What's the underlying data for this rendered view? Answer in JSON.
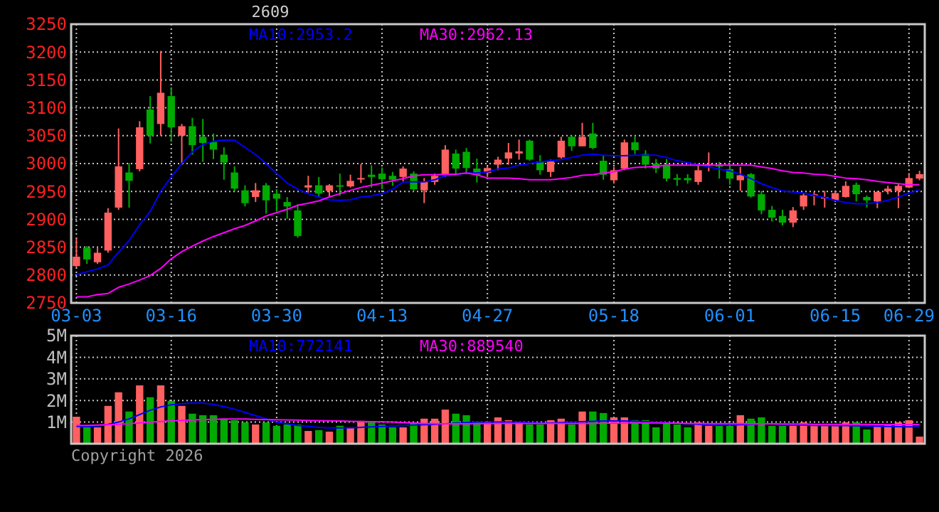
{
  "chart_data": [
    {
      "type": "candlestick",
      "title": "2609",
      "legend": "top",
      "grid": true,
      "categories": [
        "03-03",
        null,
        null,
        null,
        null,
        null,
        null,
        null,
        null,
        "03-16",
        null,
        null,
        null,
        null,
        null,
        null,
        null,
        null,
        null,
        "03-30",
        null,
        null,
        null,
        null,
        null,
        null,
        null,
        null,
        null,
        "04-13",
        null,
        null,
        null,
        null,
        null,
        null,
        null,
        null,
        null,
        "04-27",
        null,
        null,
        null,
        null,
        null,
        null,
        null,
        null,
        null,
        null,
        null,
        "05-18",
        null,
        null,
        null,
        null,
        null,
        null,
        null,
        null,
        null,
        null,
        "06-01",
        null,
        null,
        null,
        null,
        null,
        null,
        null,
        null,
        null,
        "06-15",
        null,
        null,
        null,
        null,
        null,
        null,
        "06-29",
        null
      ],
      "ylim": [
        2750,
        3250
      ],
      "yticks": [
        2750,
        2800,
        2850,
        2900,
        2950,
        3000,
        3050,
        3100,
        3150,
        3200,
        3250
      ],
      "ohlc": [
        [
          2816,
          2867,
          2814,
          2833
        ],
        [
          2849,
          2852,
          2820,
          2828
        ],
        [
          2823,
          2849,
          2820,
          2840
        ],
        [
          2844,
          2920,
          2840,
          2912
        ],
        [
          2921,
          3063,
          2917,
          2995
        ],
        [
          2984,
          3001,
          2921,
          2969
        ],
        [
          2990,
          3076,
          2986,
          3065
        ],
        [
          3097,
          3121,
          3036,
          3050
        ],
        [
          3071,
          3202,
          3050,
          3127
        ],
        [
          3121,
          3137,
          3039,
          3065
        ],
        [
          3050,
          3071,
          2998,
          3067
        ],
        [
          3067,
          3082,
          3016,
          3033
        ],
        [
          3048,
          3080,
          3003,
          3037
        ],
        [
          3039,
          3054,
          3008,
          3025
        ],
        [
          3016,
          3029,
          2971,
          3002
        ],
        [
          2984,
          2995,
          2951,
          2955
        ],
        [
          2952,
          2961,
          2923,
          2929
        ],
        [
          2940,
          2965,
          2931,
          2952
        ],
        [
          2961,
          2965,
          2910,
          2934
        ],
        [
          2946,
          2954,
          2914,
          2937
        ],
        [
          2931,
          2940,
          2901,
          2923
        ],
        [
          2916,
          2927,
          2867,
          2870
        ],
        [
          2957,
          2978,
          2948,
          2961
        ],
        [
          2961,
          2976,
          2941,
          2946
        ],
        [
          2951,
          2963,
          2940,
          2961
        ],
        [
          2961,
          2982,
          2942,
          2959
        ],
        [
          2959,
          2980,
          2957,
          2969
        ],
        [
          2973,
          2999,
          2965,
          2974
        ],
        [
          2980,
          2997,
          2957,
          2976
        ],
        [
          2982,
          2993,
          2954,
          2972
        ],
        [
          2978,
          2985,
          2960,
          2971
        ],
        [
          2976,
          2995,
          2966,
          2991
        ],
        [
          2982,
          2986,
          2950,
          2954
        ],
        [
          2952,
          2974,
          2929,
          2968
        ],
        [
          2967,
          2982,
          2962,
          2978
        ],
        [
          2980,
          3033,
          2976,
          3025
        ],
        [
          3018,
          3025,
          2982,
          2991
        ],
        [
          3021,
          3028,
          2981,
          2992
        ],
        [
          2991,
          3009,
          2966,
          2980
        ],
        [
          2983,
          2995,
          2976,
          2992
        ],
        [
          2998,
          3012,
          2988,
          3007
        ],
        [
          3009,
          3037,
          2998,
          3020
        ],
        [
          3018,
          3043,
          3007,
          3022
        ],
        [
          3041,
          3043,
          3005,
          3007
        ],
        [
          3004,
          3015,
          2980,
          2988
        ],
        [
          2985,
          3007,
          2976,
          3004
        ],
        [
          3011,
          3048,
          3009,
          3041
        ],
        [
          3048,
          3050,
          3023,
          3031
        ],
        [
          3031,
          3073,
          3031,
          3048
        ],
        [
          3054,
          3073,
          3026,
          3028
        ],
        [
          3005,
          3015,
          2971,
          2980
        ],
        [
          2970,
          2994,
          2964,
          2988
        ],
        [
          2991,
          3043,
          2988,
          3038
        ],
        [
          3038,
          3049,
          3017,
          3024
        ],
        [
          3017,
          3024,
          2991,
          2998
        ],
        [
          3000,
          3008,
          2983,
          2991
        ],
        [
          2998,
          3008,
          2968,
          2973
        ],
        [
          2974,
          2981,
          2960,
          2971
        ],
        [
          2974,
          2981,
          2964,
          2970
        ],
        [
          2967,
          3000,
          2962,
          2988
        ],
        [
          2997,
          3020,
          2986,
          2999
        ],
        [
          2997,
          3003,
          2973,
          2995
        ],
        [
          2990,
          3000,
          2962,
          2973
        ],
        [
          2970,
          2994,
          2951,
          2979
        ],
        [
          2981,
          2983,
          2939,
          2941
        ],
        [
          2945,
          2951,
          2909,
          2916
        ],
        [
          2917,
          2924,
          2896,
          2903
        ],
        [
          2906,
          2917,
          2889,
          2894
        ],
        [
          2894,
          2922,
          2886,
          2916
        ],
        [
          2923,
          2947,
          2917,
          2943
        ],
        [
          2942,
          2949,
          2925,
          2945
        ],
        [
          2937,
          2951,
          2921,
          2940
        ],
        [
          2934,
          2951,
          2931,
          2947
        ],
        [
          2940,
          2968,
          2939,
          2960
        ],
        [
          2962,
          2966,
          2932,
          2945
        ],
        [
          2940,
          2943,
          2921,
          2934
        ],
        [
          2932,
          2951,
          2920,
          2949
        ],
        [
          2950,
          2960,
          2945,
          2955
        ],
        [
          2951,
          2964,
          2920,
          2960
        ],
        [
          2957,
          2983,
          2956,
          2974
        ],
        [
          2973,
          2987,
          2970,
          2981
        ]
      ],
      "colors": [
        "#ff6060",
        "#00aa00",
        "#ff6060",
        "#ff6060",
        "#ff6060",
        "#00aa00",
        "#ff6060",
        "#00aa00",
        "#ff6060",
        "#00aa00",
        "#ff6060",
        "#00aa00",
        "#00aa00",
        "#00aa00",
        "#00aa00",
        "#00aa00",
        "#00aa00",
        "#ff6060",
        "#00aa00",
        "#00aa00",
        "#00aa00",
        "#00aa00",
        "#ff6060",
        "#00aa00",
        "#ff6060",
        "#00aa00",
        "#ff6060",
        "#ff6060",
        "#00aa00",
        "#00aa00",
        "#00aa00",
        "#ff6060",
        "#00aa00",
        "#ff6060",
        "#ff6060",
        "#ff6060",
        "#00aa00",
        "#00aa00",
        "#00aa00",
        "#ff6060",
        "#ff6060",
        "#ff6060",
        "#ff6060",
        "#00aa00",
        "#00aa00",
        "#ff6060",
        "#ff6060",
        "#00aa00",
        "#ff6060",
        "#00aa00",
        "#00aa00",
        "#ff6060",
        "#ff6060",
        "#00aa00",
        "#00aa00",
        "#00aa00",
        "#00aa00",
        "#00aa00",
        "#00aa00",
        "#ff6060",
        "#ff6060",
        "#00aa00",
        "#00aa00",
        "#ff6060",
        "#00aa00",
        "#00aa00",
        "#00aa00",
        "#00aa00",
        "#ff6060",
        "#ff6060",
        "#ff6060",
        "#ff6060",
        "#ff6060",
        "#ff6060",
        "#00aa00",
        "#00aa00",
        "#ff6060",
        "#ff6060",
        "#ff6060",
        "#ff6060",
        "#ff6060"
      ],
      "series": [
        {
          "type": "line",
          "name": "MA10:2953.2",
          "color": "#0000ff",
          "values": [
            2801,
            2806,
            2811,
            2818,
            2841,
            2862,
            2890,
            2914,
            2950,
            2976,
            3000,
            3021,
            3034,
            3040,
            3042,
            3042,
            3029,
            3016,
            3000,
            2982,
            2965,
            2954,
            2946,
            2940,
            2935,
            2934,
            2935,
            2940,
            2942,
            2946,
            2954,
            2967,
            2967,
            2967,
            2971,
            2978,
            2980,
            2983,
            2983,
            2985,
            2990,
            2992,
            2997,
            3000,
            3003,
            3005,
            3007,
            3011,
            3015,
            3017,
            3015,
            3014,
            3014,
            3015,
            3015,
            3015,
            3011,
            3005,
            3002,
            2998,
            2994,
            2990,
            2987,
            2981,
            2973,
            2964,
            2957,
            2951,
            2949,
            2947,
            2943,
            2939,
            2934,
            2930,
            2928,
            2928,
            2930,
            2934,
            2940,
            2947,
            2953
          ]
        },
        {
          "type": "line",
          "name": "MA30:2962.13",
          "color": "#ff00ff",
          "values": [
            2761,
            2761,
            2765,
            2767,
            2778,
            2784,
            2791,
            2799,
            2812,
            2829,
            2842,
            2852,
            2861,
            2869,
            2876,
            2883,
            2889,
            2897,
            2906,
            2912,
            2918,
            2925,
            2929,
            2933,
            2940,
            2946,
            2952,
            2957,
            2961,
            2965,
            2969,
            2973,
            2978,
            2980,
            2980,
            2981,
            2981,
            2983,
            2980,
            2974,
            2974,
            2974,
            2973,
            2971,
            2971,
            2971,
            2973,
            2975,
            2979,
            2980,
            2983,
            2985,
            2990,
            2993,
            2994,
            2995,
            2997,
            2997,
            2997,
            2997,
            2997,
            2997,
            2997,
            2997,
            2997,
            2994,
            2991,
            2987,
            2984,
            2983,
            2981,
            2980,
            2977,
            2974,
            2973,
            2971,
            2968,
            2966,
            2964,
            2962,
            2962
          ]
        }
      ]
    },
    {
      "type": "bar",
      "legend": "top",
      "grid": true,
      "tick_labels": "y",
      "annotations": [
        "Copyright 2026"
      ],
      "categories": [
        null,
        null,
        null,
        null,
        null,
        null,
        null,
        null,
        null,
        null,
        null,
        null,
        null,
        null,
        null,
        null,
        null,
        null,
        null,
        null,
        null,
        null,
        null,
        null,
        null,
        null,
        null,
        null,
        null,
        null,
        null,
        null,
        null,
        null,
        null,
        null,
        null,
        null,
        null,
        null,
        null,
        null,
        null,
        null,
        null,
        null,
        null,
        null,
        null,
        null,
        null,
        null,
        null,
        null,
        null,
        null,
        null,
        null,
        null,
        null,
        null,
        null,
        null,
        null,
        null,
        null,
        null,
        null,
        null,
        null,
        null,
        null,
        null,
        null,
        null,
        null,
        null,
        null,
        null,
        null,
        null
      ],
      "ylim": [
        0,
        5
      ],
      "yticks": [
        {
          "value": 1,
          "label": "1M"
        },
        {
          "value": 2,
          "label": "2M"
        },
        {
          "value": 3,
          "label": "3M"
        },
        {
          "value": 4,
          "label": "4M"
        },
        {
          "value": 5,
          "label": "5M"
        }
      ],
      "series": [
        {
          "type": "bar",
          "values": [
            1.25,
            0.76,
            0.76,
            1.75,
            2.38,
            1.49,
            2.7,
            2.15,
            2.7,
            1.98,
            1.75,
            1.39,
            1.32,
            1.32,
            1.16,
            1.09,
            0.99,
            0.89,
            0.99,
            0.83,
            0.89,
            0.89,
            0.59,
            0.63,
            0.56,
            0.83,
            0.76,
            1.06,
            0.99,
            0.89,
            0.76,
            0.76,
            0.99,
            1.16,
            1.16,
            1.58,
            1.39,
            1.32,
            0.99,
            0.99,
            1.22,
            1.09,
            0.99,
            0.89,
            0.89,
            1.09,
            1.16,
            0.89,
            1.49,
            1.49,
            1.42,
            1.22,
            1.22,
            1.09,
            1.09,
            0.76,
            0.92,
            0.89,
            0.76,
            0.99,
            0.83,
            0.83,
            0.83,
            1.32,
            1.16,
            1.22,
            0.83,
            0.83,
            0.83,
            0.99,
            0.89,
            0.83,
            0.83,
            0.99,
            0.99,
            0.66,
            0.83,
            0.89,
            0.99,
            1.09,
            0.33
          ],
          "colors": [
            "#ff6060",
            "#00aa00",
            "#ff6060",
            "#ff6060",
            "#ff6060",
            "#00aa00",
            "#ff6060",
            "#00aa00",
            "#ff6060",
            "#00aa00",
            "#ff6060",
            "#00aa00",
            "#00aa00",
            "#00aa00",
            "#00aa00",
            "#00aa00",
            "#00aa00",
            "#ff6060",
            "#00aa00",
            "#00aa00",
            "#00aa00",
            "#00aa00",
            "#ff6060",
            "#00aa00",
            "#ff6060",
            "#00aa00",
            "#ff6060",
            "#ff6060",
            "#00aa00",
            "#00aa00",
            "#00aa00",
            "#ff6060",
            "#00aa00",
            "#ff6060",
            "#ff6060",
            "#ff6060",
            "#00aa00",
            "#00aa00",
            "#00aa00",
            "#ff6060",
            "#ff6060",
            "#ff6060",
            "#ff6060",
            "#00aa00",
            "#00aa00",
            "#ff6060",
            "#ff6060",
            "#00aa00",
            "#ff6060",
            "#00aa00",
            "#00aa00",
            "#ff6060",
            "#ff6060",
            "#00aa00",
            "#00aa00",
            "#00aa00",
            "#00aa00",
            "#00aa00",
            "#00aa00",
            "#ff6060",
            "#ff6060",
            "#00aa00",
            "#00aa00",
            "#ff6060",
            "#00aa00",
            "#00aa00",
            "#00aa00",
            "#00aa00",
            "#ff6060",
            "#ff6060",
            "#ff6060",
            "#ff6060",
            "#ff6060",
            "#ff6060",
            "#00aa00",
            "#00aa00",
            "#ff6060",
            "#ff6060",
            "#ff6060",
            "#ff6060",
            "#ff6060"
          ]
        },
        {
          "type": "line",
          "name": "MA10:772141",
          "color": "#0000ff",
          "values": [
            0.8,
            0.8,
            0.82,
            0.9,
            1.0,
            1.15,
            1.35,
            1.55,
            1.7,
            1.8,
            1.85,
            1.88,
            1.88,
            1.82,
            1.72,
            1.6,
            1.45,
            1.3,
            1.15,
            1.0,
            0.92,
            0.85,
            0.8,
            0.76,
            0.73,
            0.73,
            0.74,
            0.76,
            0.78,
            0.8,
            0.82,
            0.84,
            0.86,
            0.88,
            0.9,
            0.92,
            0.95,
            0.98,
            1.0,
            1.0,
            1.0,
            1.0,
            1.0,
            0.98,
            0.96,
            0.96,
            0.98,
            1.0,
            1.02,
            1.04,
            1.05,
            1.05,
            1.05,
            1.04,
            1.02,
            1.0,
            0.98,
            0.95,
            0.92,
            0.9,
            0.88,
            0.87,
            0.87,
            0.88,
            0.9,
            0.92,
            0.92,
            0.9,
            0.88,
            0.86,
            0.85,
            0.85,
            0.84,
            0.84,
            0.83,
            0.82,
            0.81,
            0.8,
            0.79,
            0.78,
            0.77
          ]
        },
        {
          "type": "line",
          "name": "MA30:889540",
          "color": "#ff00ff",
          "values": [
            0.85,
            0.85,
            0.86,
            0.88,
            0.9,
            0.93,
            0.96,
            1.0,
            1.03,
            1.06,
            1.08,
            1.1,
            1.12,
            1.13,
            1.14,
            1.14,
            1.14,
            1.13,
            1.12,
            1.11,
            1.1,
            1.09,
            1.08,
            1.07,
            1.06,
            1.05,
            1.04,
            1.03,
            1.02,
            1.01,
            1.0,
            0.98,
            0.96,
            0.94,
            0.93,
            0.92,
            0.92,
            0.92,
            0.93,
            0.93,
            0.94,
            0.94,
            0.94,
            0.94,
            0.94,
            0.94,
            0.94,
            0.94,
            0.94,
            0.94,
            0.95,
            0.95,
            0.96,
            0.96,
            0.96,
            0.96,
            0.95,
            0.95,
            0.94,
            0.94,
            0.93,
            0.93,
            0.93,
            0.93,
            0.92,
            0.92,
            0.92,
            0.91,
            0.91,
            0.91,
            0.9,
            0.9,
            0.9,
            0.9,
            0.9,
            0.9,
            0.89,
            0.89,
            0.89,
            0.89,
            0.89
          ]
        }
      ]
    }
  ]
}
